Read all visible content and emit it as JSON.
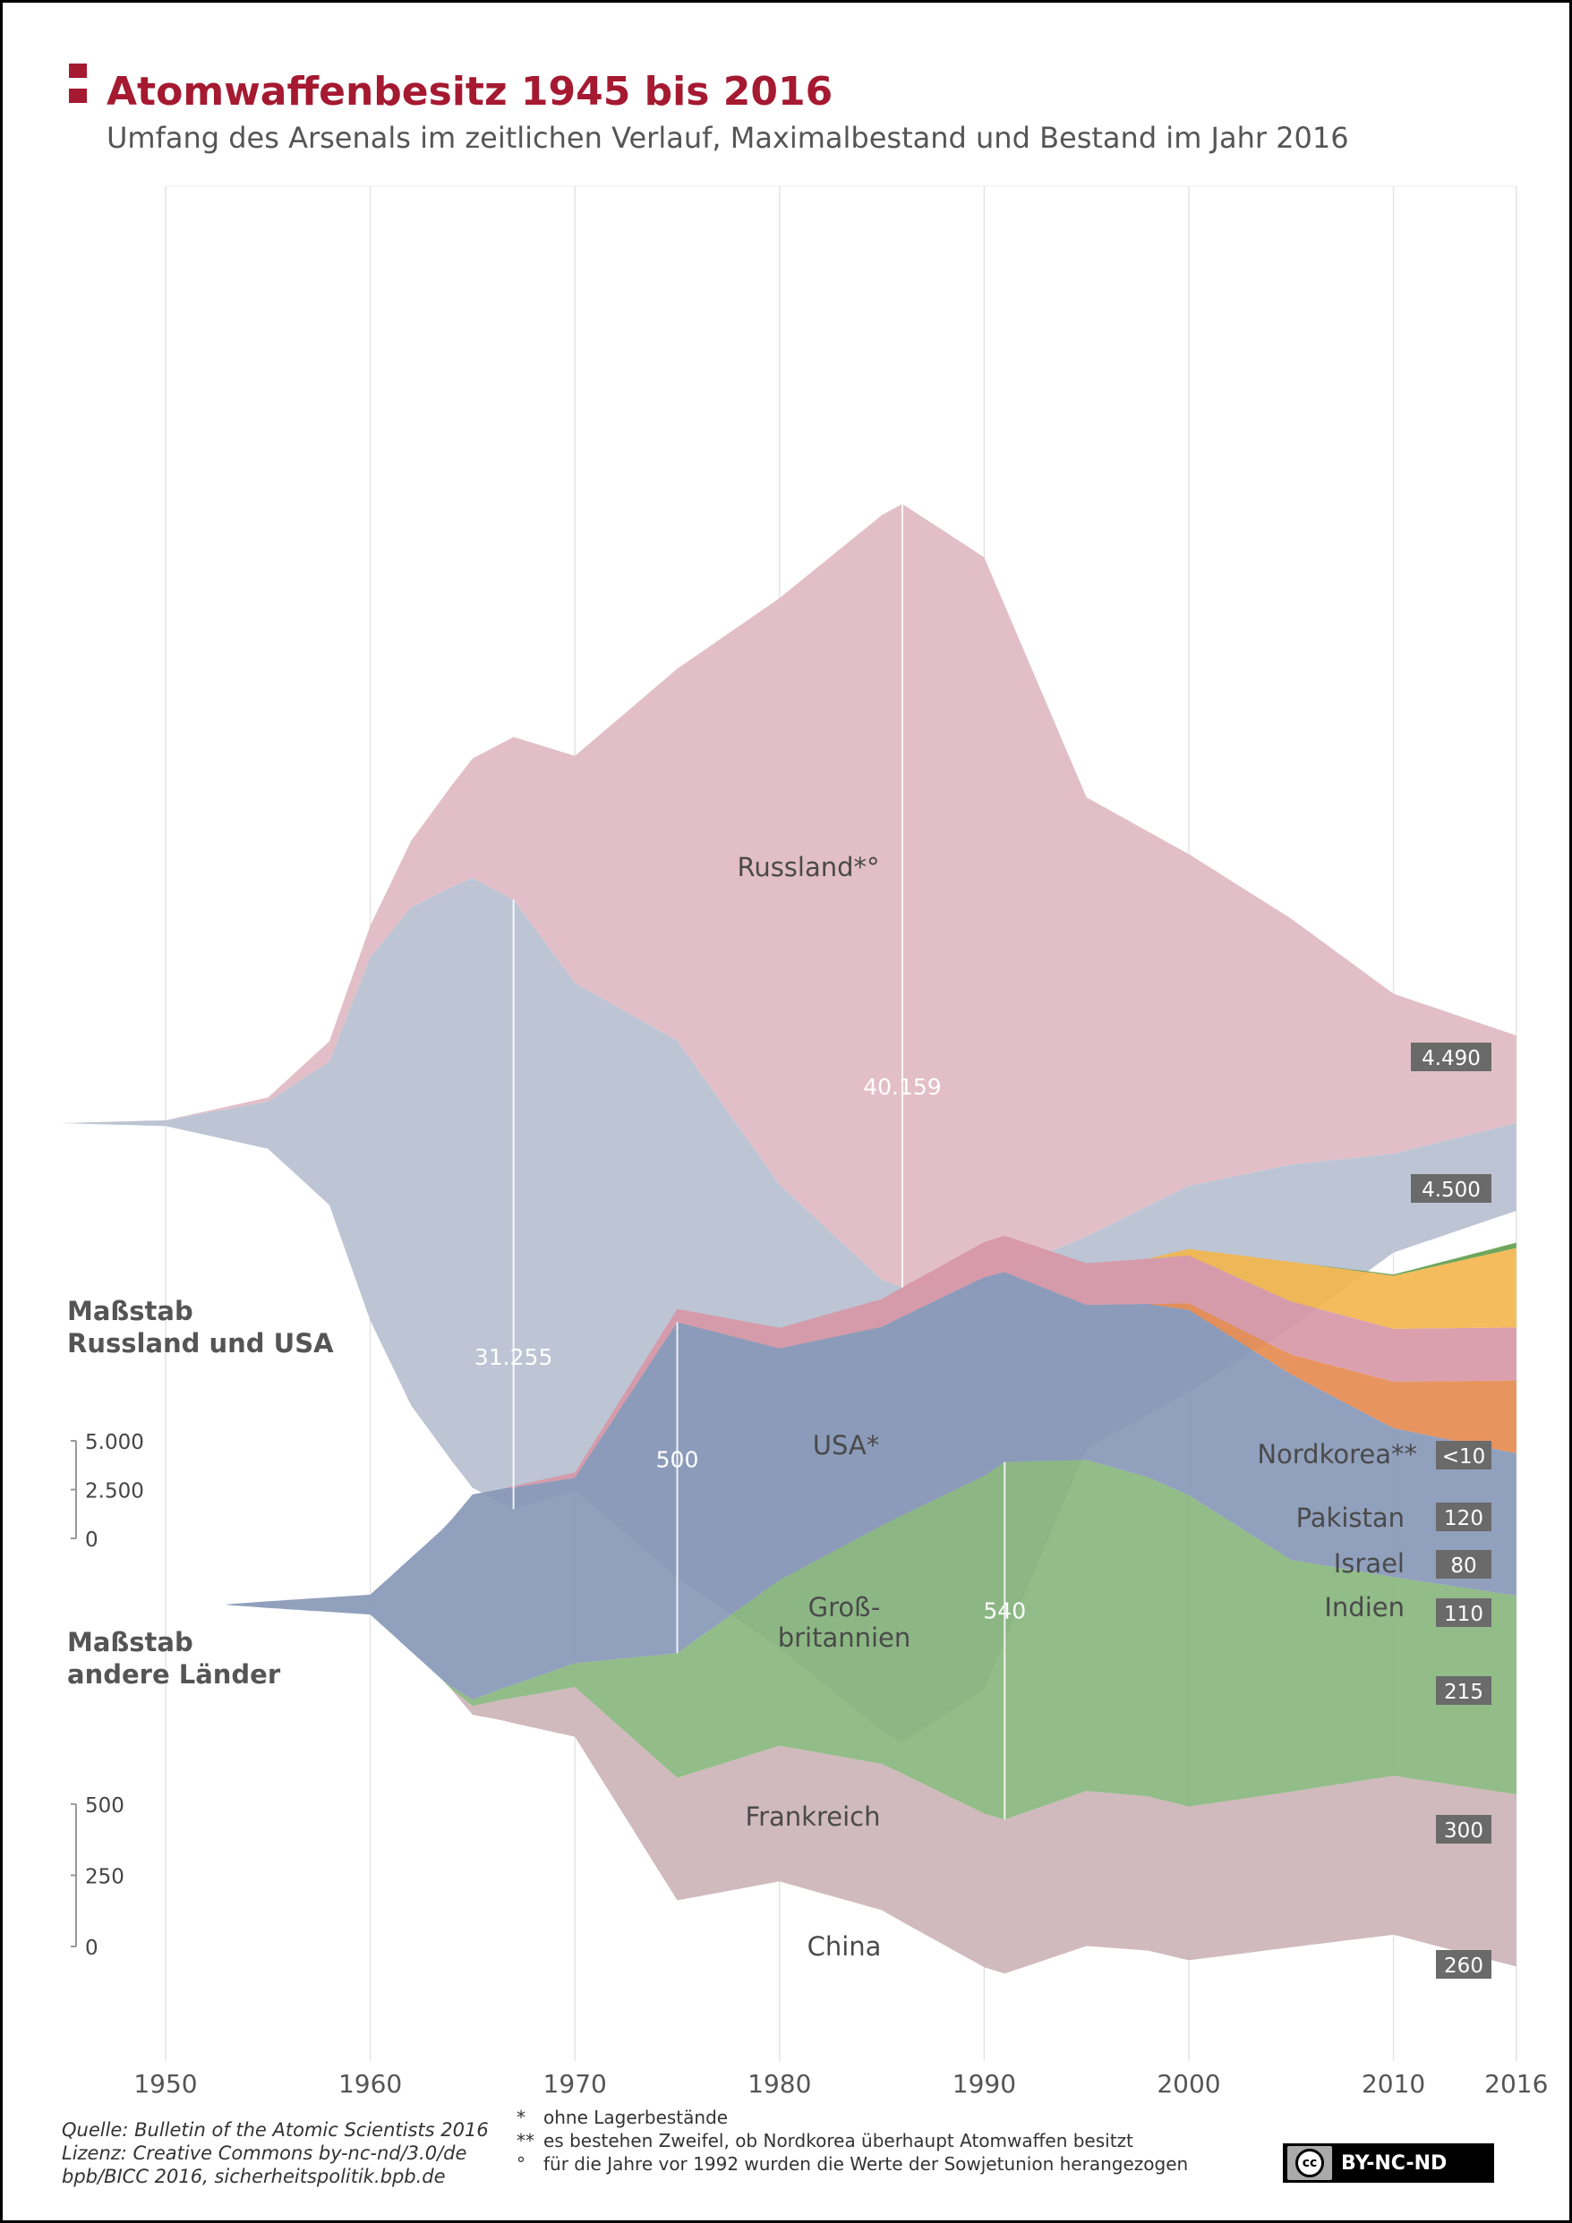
{
  "header": {
    "title": "Atomwaffenbesitz 1945 bis 2016",
    "subtitle": "Umfang des Arsenals im zeitlichen Verlauf, Maximalbestand und Bestand im Jahr 2016"
  },
  "colors": {
    "title": "#a51931",
    "russland": "#e2bfc8",
    "usa": "#bcc4d3",
    "grossbritannien": "#8596b6",
    "frankreich": "#86b57b",
    "china": "#cbb3b6",
    "pakistan": "#f3b54a",
    "israel": "#d796a5",
    "indien": "#e5884e",
    "nordkorea": "#5f9c4a",
    "value_box": "#6a6a6a"
  },
  "chart_data": [
    {
      "type": "area",
      "subtype": "streamgraph",
      "title": "Maßstab Russland und USA",
      "scale_ticks": [
        0,
        2500,
        5000
      ],
      "scale_tick_labels": [
        "0",
        "2.500",
        "5.000"
      ],
      "x_ticks": [
        1950,
        1960,
        1970,
        1980,
        1990,
        2000,
        2010,
        2016
      ],
      "x_range": [
        1945,
        2016
      ],
      "series": [
        {
          "name": "USA*",
          "x": [
            1945,
            1950,
            1955,
            1958,
            1960,
            1962,
            1964,
            1965,
            1967,
            1970,
            1975,
            1980,
            1985,
            1986,
            1990,
            1995,
            2000,
            2005,
            2010,
            2016
          ],
          "values": [
            6,
            299,
            2422,
            7345,
            18638,
            25540,
            29463,
            31255,
            31255,
            26008,
            27519,
            23764,
            23135,
            23317,
            21004,
            10904,
            10577,
            8360,
            5066,
            4500
          ],
          "max_value": 31255,
          "max_year": 1967,
          "max_label": "31.255",
          "value_2016": 4500,
          "value_2016_label": "4.500"
        },
        {
          "name": "Russland*°",
          "x": [
            1945,
            1950,
            1955,
            1960,
            1965,
            1970,
            1975,
            1980,
            1985,
            1986,
            1990,
            1995,
            2000,
            2005,
            2010,
            2016
          ],
          "values": [
            0,
            5,
            200,
            1605,
            6129,
            11643,
            19055,
            30062,
            39197,
            40159,
            37000,
            22500,
            17000,
            12600,
            8200,
            4490
          ],
          "max_value": 40159,
          "max_year": 1986,
          "max_label": "40.159",
          "value_2016": 4490,
          "value_2016_label": "4.490"
        }
      ]
    },
    {
      "type": "area",
      "subtype": "stacked",
      "title": "Maßstab andere Länder",
      "scale_ticks": [
        0,
        250,
        500
      ],
      "scale_tick_labels": [
        "0",
        "250",
        "500"
      ],
      "x_ticks": [
        1950,
        1960,
        1970,
        1980,
        1990,
        2000,
        2010,
        2016
      ],
      "x_range": [
        1945,
        2016
      ],
      "series": [
        {
          "name": "China",
          "x": [
            1964,
            1970,
            1975,
            1980,
            1986,
            1990,
            1995,
            2000,
            2005,
            2010,
            2016
          ],
          "values": [
            1,
            75,
            185,
            205,
            224,
            232,
            234,
            232,
            235,
            240,
            260
          ],
          "value_2016": 260,
          "value_2016_label": "260"
        },
        {
          "name": "Frankreich",
          "x": [
            1964,
            1970,
            1975,
            1980,
            1985,
            1991,
            1995,
            2000,
            2005,
            2010,
            2016
          ],
          "values": [
            4,
            36,
            188,
            250,
            360,
            540,
            500,
            470,
            350,
            300,
            300
          ],
          "max_value": 540,
          "max_year": 1991,
          "max_label": "540",
          "value_2016": 300,
          "value_2016_label": "300"
        },
        {
          "name": "Groß-\nbritannien",
          "x": [
            1953,
            1955,
            1960,
            1965,
            1970,
            1975,
            1980,
            1985,
            1990,
            1995,
            2000,
            2005,
            2010,
            2016
          ],
          "values": [
            1,
            10,
            30,
            310,
            280,
            500,
            350,
            300,
            300,
            234,
            280,
            280,
            225,
            215
          ],
          "max_value": 500,
          "max_year": 1975,
          "max_label": "500",
          "value_2016": 215,
          "value_2016_label": "215"
        },
        {
          "name": "Indien",
          "x": [
            1998,
            2000,
            2005,
            2010,
            2016
          ],
          "values": [
            0,
            10,
            30,
            70,
            110
          ],
          "value_2016": 110,
          "value_2016_label": "110"
        },
        {
          "name": "Israel",
          "x": [
            1967,
            1970,
            1975,
            1980,
            1985,
            1990,
            1995,
            2000,
            2005,
            2010,
            2016
          ],
          "values": [
            2,
            8,
            20,
            31,
            42,
            53,
            63,
            72,
            80,
            80,
            80
          ],
          "value_2016": 80,
          "value_2016_label": "80"
        },
        {
          "name": "Pakistan",
          "x": [
            1998,
            2000,
            2005,
            2010,
            2016
          ],
          "values": [
            0,
            10,
            60,
            80,
            120
          ],
          "value_2016": 120,
          "value_2016_label": "120"
        },
        {
          "name": "Nordkorea**",
          "x": [
            2006,
            2010,
            2016
          ],
          "values": [
            0,
            2,
            8
          ],
          "value_2016": 8,
          "value_2016_label": "<10"
        }
      ]
    }
  ],
  "scales": {
    "major": {
      "title_line1": "Maßstab",
      "title_line2": "Russland und USA"
    },
    "minor": {
      "title_line1": "Maßstab",
      "title_line2": "andere Länder"
    }
  },
  "footer": {
    "source_line1": "Quelle: Bulletin of the Atomic Scientists 2016",
    "source_line2": "Lizenz: Creative Commons by-nc-nd/3.0/de",
    "source_line3": "bpb/BICC 2016, sicherheitspolitik.bpb.de",
    "notes": [
      {
        "mark": "*",
        "text": "ohne Lagerbestände"
      },
      {
        "mark": "**",
        "text": "es bestehen Zweifel, ob Nordkorea überhaupt Atomwaffen besitzt"
      },
      {
        "mark": "°",
        "text": "für die Jahre vor 1992 wurden die Werte der Sowjetunion herangezogen"
      }
    ],
    "license_badge": "BY-NC-ND",
    "license_icon_text": "cc"
  }
}
